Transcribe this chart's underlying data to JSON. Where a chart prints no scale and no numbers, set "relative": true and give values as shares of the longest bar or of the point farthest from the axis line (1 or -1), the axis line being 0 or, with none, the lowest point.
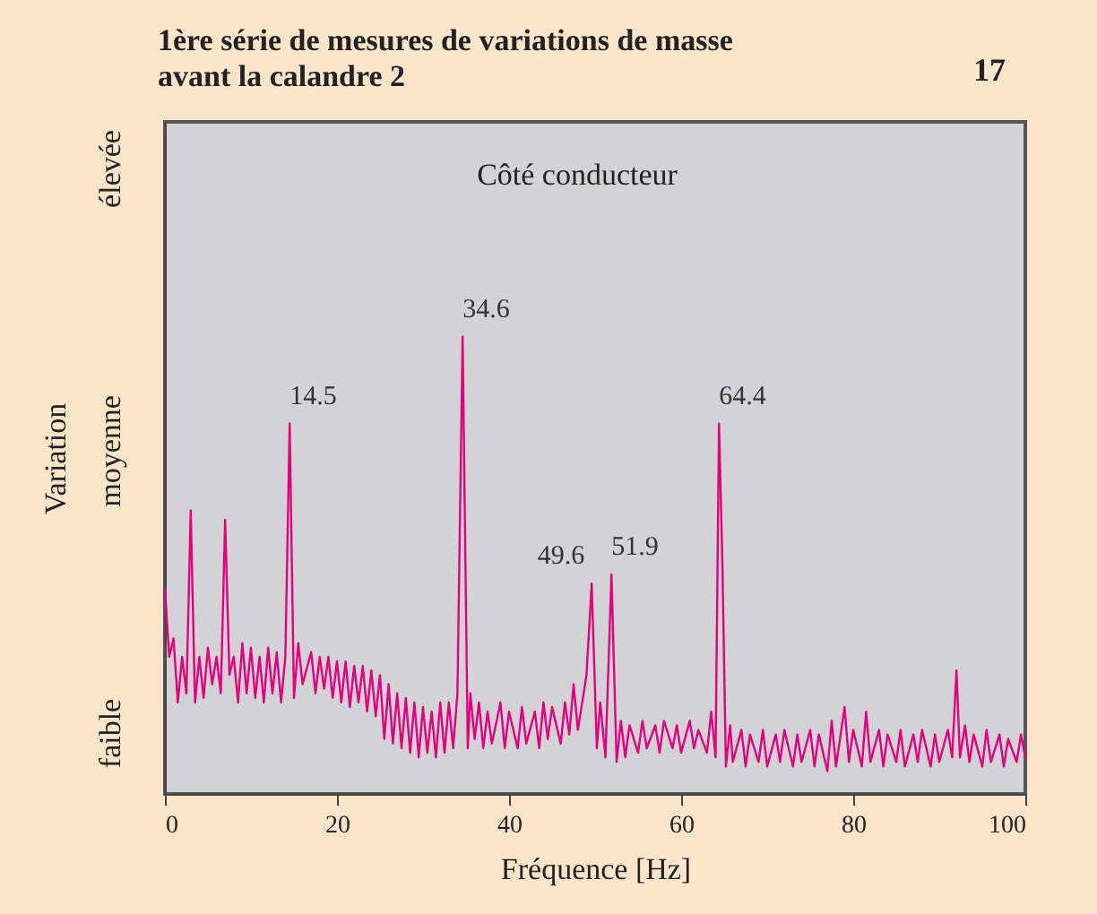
{
  "chart_data": {
    "type": "line",
    "relative": true,
    "title": "1ère série de mesures de variations de masse\navant la calandre 2",
    "xlabel": "Fréquence [Hz]",
    "ylabel": "Variation",
    "xlim": [
      0,
      100
    ],
    "xticks": [
      0,
      20,
      40,
      60,
      80,
      100
    ],
    "grid": false,
    "marker": "none",
    "line_style": "solid",
    "annotations": [
      "Côté conducteur",
      "17",
      "faible",
      "moyenne",
      "élevée",
      {
        "text": "14.5",
        "x": 14.5,
        "y": 0.81
      },
      {
        "text": "34.6",
        "x": 34.6,
        "y": 1
      },
      {
        "text": "49.6",
        "x": 49.6,
        "y": 0.46
      },
      {
        "text": "51.9",
        "x": 51.9,
        "y": 0.48
      },
      {
        "text": "64.4",
        "x": 64.4,
        "y": 0.81
      }
    ],
    "series": [
      {
        "color": "#e6007e",
        "x": [
          0,
          0.5,
          1,
          1.5,
          2,
          2.5,
          3,
          3.5,
          4,
          4.5,
          5,
          5.5,
          6,
          6.5,
          7,
          7.5,
          8,
          8.5,
          9,
          9.5,
          10,
          10.5,
          11,
          11.5,
          12,
          12.5,
          13,
          13.5,
          14,
          14.5,
          15,
          15.5,
          16,
          17,
          17.5,
          18,
          18.5,
          19,
          19.5,
          20,
          20.5,
          21,
          21.5,
          22,
          22.5,
          23,
          23.5,
          24,
          24.5,
          25,
          25.5,
          26,
          26.5,
          27,
          27.5,
          28,
          28.5,
          29,
          29.5,
          30,
          30.5,
          31,
          31.5,
          32,
          32.5,
          33,
          33.5,
          34,
          34.6,
          35.2,
          35.5,
          36,
          36.5,
          37,
          37.5,
          38,
          39,
          39.5,
          40,
          41,
          41.5,
          42,
          43,
          43.5,
          44,
          44.5,
          45,
          46,
          46.5,
          47,
          47.5,
          48,
          49,
          49.6,
          50.2,
          50.6,
          51.2,
          51.9,
          52.5,
          53,
          53.5,
          54,
          55,
          55.5,
          56,
          57,
          57.5,
          58,
          59,
          59.5,
          60,
          61,
          61.5,
          62,
          63,
          63.5,
          64,
          64.4,
          64.8,
          65.2,
          65.7,
          66,
          67,
          67.5,
          68,
          69,
          69.5,
          70,
          71,
          71.5,
          72,
          73,
          73.5,
          74,
          75,
          75.5,
          76,
          77,
          77.5,
          78,
          79,
          79.5,
          80,
          81,
          81.5,
          82,
          83,
          83.5,
          84,
          85,
          85.5,
          86,
          87,
          87.5,
          88,
          89,
          89.5,
          90,
          91,
          91.5,
          92,
          92.4,
          93,
          93.5,
          94,
          95,
          95.5,
          96,
          97,
          97.5,
          98,
          99,
          99.5,
          100
        ],
        "values": [
          0.45,
          0.3,
          0.34,
          0.2,
          0.3,
          0.22,
          0.62,
          0.2,
          0.3,
          0.21,
          0.32,
          0.24,
          0.3,
          0.22,
          0.6,
          0.26,
          0.3,
          0.2,
          0.33,
          0.22,
          0.32,
          0.21,
          0.3,
          0.2,
          0.32,
          0.22,
          0.31,
          0.2,
          0.3,
          0.81,
          0.21,
          0.33,
          0.24,
          0.31,
          0.22,
          0.3,
          0.23,
          0.3,
          0.21,
          0.29,
          0.2,
          0.29,
          0.19,
          0.28,
          0.2,
          0.28,
          0.18,
          0.27,
          0.17,
          0.26,
          0.12,
          0.24,
          0.11,
          0.22,
          0.1,
          0.21,
          0.09,
          0.2,
          0.08,
          0.19,
          0.09,
          0.18,
          0.08,
          0.2,
          0.09,
          0.2,
          0.1,
          0.22,
          1,
          0.1,
          0.22,
          0.12,
          0.2,
          0.1,
          0.18,
          0.11,
          0.2,
          0.1,
          0.18,
          0.1,
          0.19,
          0.11,
          0.18,
          0.1,
          0.2,
          0.12,
          0.19,
          0.11,
          0.2,
          0.13,
          0.24,
          0.14,
          0.26,
          0.46,
          0.1,
          0.2,
          0.08,
          0.48,
          0.07,
          0.16,
          0.08,
          0.15,
          0.09,
          0.16,
          0.1,
          0.15,
          0.09,
          0.16,
          0.1,
          0.15,
          0.09,
          0.16,
          0.1,
          0.14,
          0.09,
          0.18,
          0.08,
          0.81,
          0.5,
          0.06,
          0.15,
          0.07,
          0.14,
          0.06,
          0.13,
          0.07,
          0.14,
          0.06,
          0.13,
          0.07,
          0.14,
          0.06,
          0.13,
          0.07,
          0.14,
          0.06,
          0.13,
          0.05,
          0.16,
          0.06,
          0.19,
          0.07,
          0.14,
          0.06,
          0.18,
          0.07,
          0.14,
          0.06,
          0.13,
          0.07,
          0.14,
          0.06,
          0.13,
          0.07,
          0.14,
          0.06,
          0.13,
          0.07,
          0.14,
          0.08,
          0.27,
          0.08,
          0.15,
          0.07,
          0.13,
          0.06,
          0.14,
          0.07,
          0.13,
          0.06,
          0.12,
          0.07,
          0.13,
          0.08
        ]
      }
    ]
  }
}
